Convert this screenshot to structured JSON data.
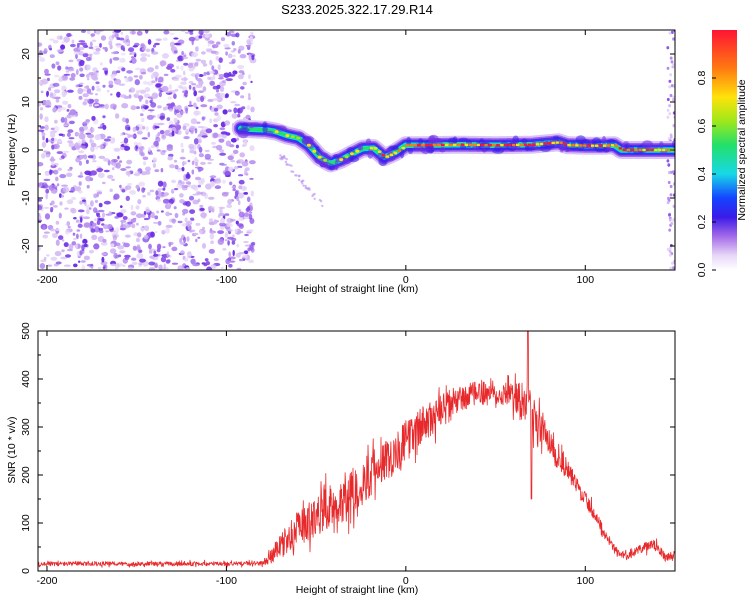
{
  "figure": {
    "title": "S233.2025.322.17.29.R14"
  },
  "chart_data": [
    {
      "type": "heatmap",
      "title": "S233.2025.322.17.29.R14",
      "xlabel": "Height of straight line (km)",
      "ylabel": "Frequency (Hz)",
      "xlim": [
        -205,
        150
      ],
      "ylim": [
        -25,
        25
      ],
      "xticks": [
        -200,
        -100,
        0,
        100
      ],
      "yticks": [
        -20,
        -10,
        0,
        10,
        20
      ],
      "noise_region_x": [
        -205,
        -85
      ],
      "ridge": {
        "x": [
          -92,
          -85,
          -78,
          -72,
          -66,
          -60,
          -54,
          -48,
          -42,
          -36,
          -30,
          -24,
          -18,
          -12,
          -6,
          0,
          10,
          30,
          50,
          70,
          85,
          90,
          100,
          110,
          116,
          120,
          135,
          150
        ],
        "freq": [
          4.5,
          4.3,
          4.2,
          3.8,
          3.0,
          2.5,
          1.0,
          -1.5,
          -2.8,
          -2.0,
          -0.8,
          0.3,
          0.4,
          -1.5,
          -0.5,
          1.0,
          1.0,
          1.1,
          1.0,
          1.1,
          1.6,
          1.0,
          0.9,
          0.9,
          1.0,
          0.0,
          0.0,
          0.0
        ]
      },
      "colorbar": {
        "label": "Normalized spectral amplitude",
        "range": [
          0.0,
          1.0
        ],
        "ticks": [
          0.0,
          0.2,
          0.4,
          0.6,
          0.8
        ],
        "tick_labels": [
          "0.0",
          "0.2",
          "0.4",
          "0.6",
          "0.8"
        ]
      }
    },
    {
      "type": "line",
      "xlabel": "Height of straight line (km)",
      "ylabel": "SNR (10 * v/v)",
      "xlim": [
        -205,
        150
      ],
      "ylim": [
        0,
        500
      ],
      "xticks": [
        -200,
        -100,
        0,
        100
      ],
      "yticks": [
        0,
        100,
        200,
        300,
        400,
        500
      ],
      "series": [
        {
          "name": "SNR",
          "color": "#e8292b",
          "envelope_x": [
            -205,
            -150,
            -100,
            -80,
            -75,
            -65,
            -55,
            -45,
            -35,
            -25,
            -15,
            -5,
            5,
            15,
            25,
            35,
            45,
            55,
            62,
            68,
            75,
            85,
            95,
            105,
            112,
            118,
            123,
            130,
            138,
            145,
            150
          ],
          "envelope_mid": [
            15,
            15,
            15,
            16,
            30,
            70,
            100,
            130,
            150,
            180,
            220,
            250,
            290,
            320,
            350,
            365,
            375,
            370,
            360,
            340,
            300,
            240,
            180,
            120,
            70,
            40,
            30,
            45,
            55,
            30,
            35
          ],
          "envelope_amp": [
            6,
            6,
            6,
            6,
            20,
            45,
            55,
            60,
            65,
            65,
            60,
            60,
            55,
            50,
            40,
            35,
            30,
            35,
            45,
            60,
            45,
            35,
            25,
            18,
            12,
            10,
            10,
            12,
            15,
            12,
            10
          ],
          "peak_x": 68,
          "peak_value": 500,
          "dip_x": 70,
          "dip_value": 150
        }
      ]
    }
  ]
}
